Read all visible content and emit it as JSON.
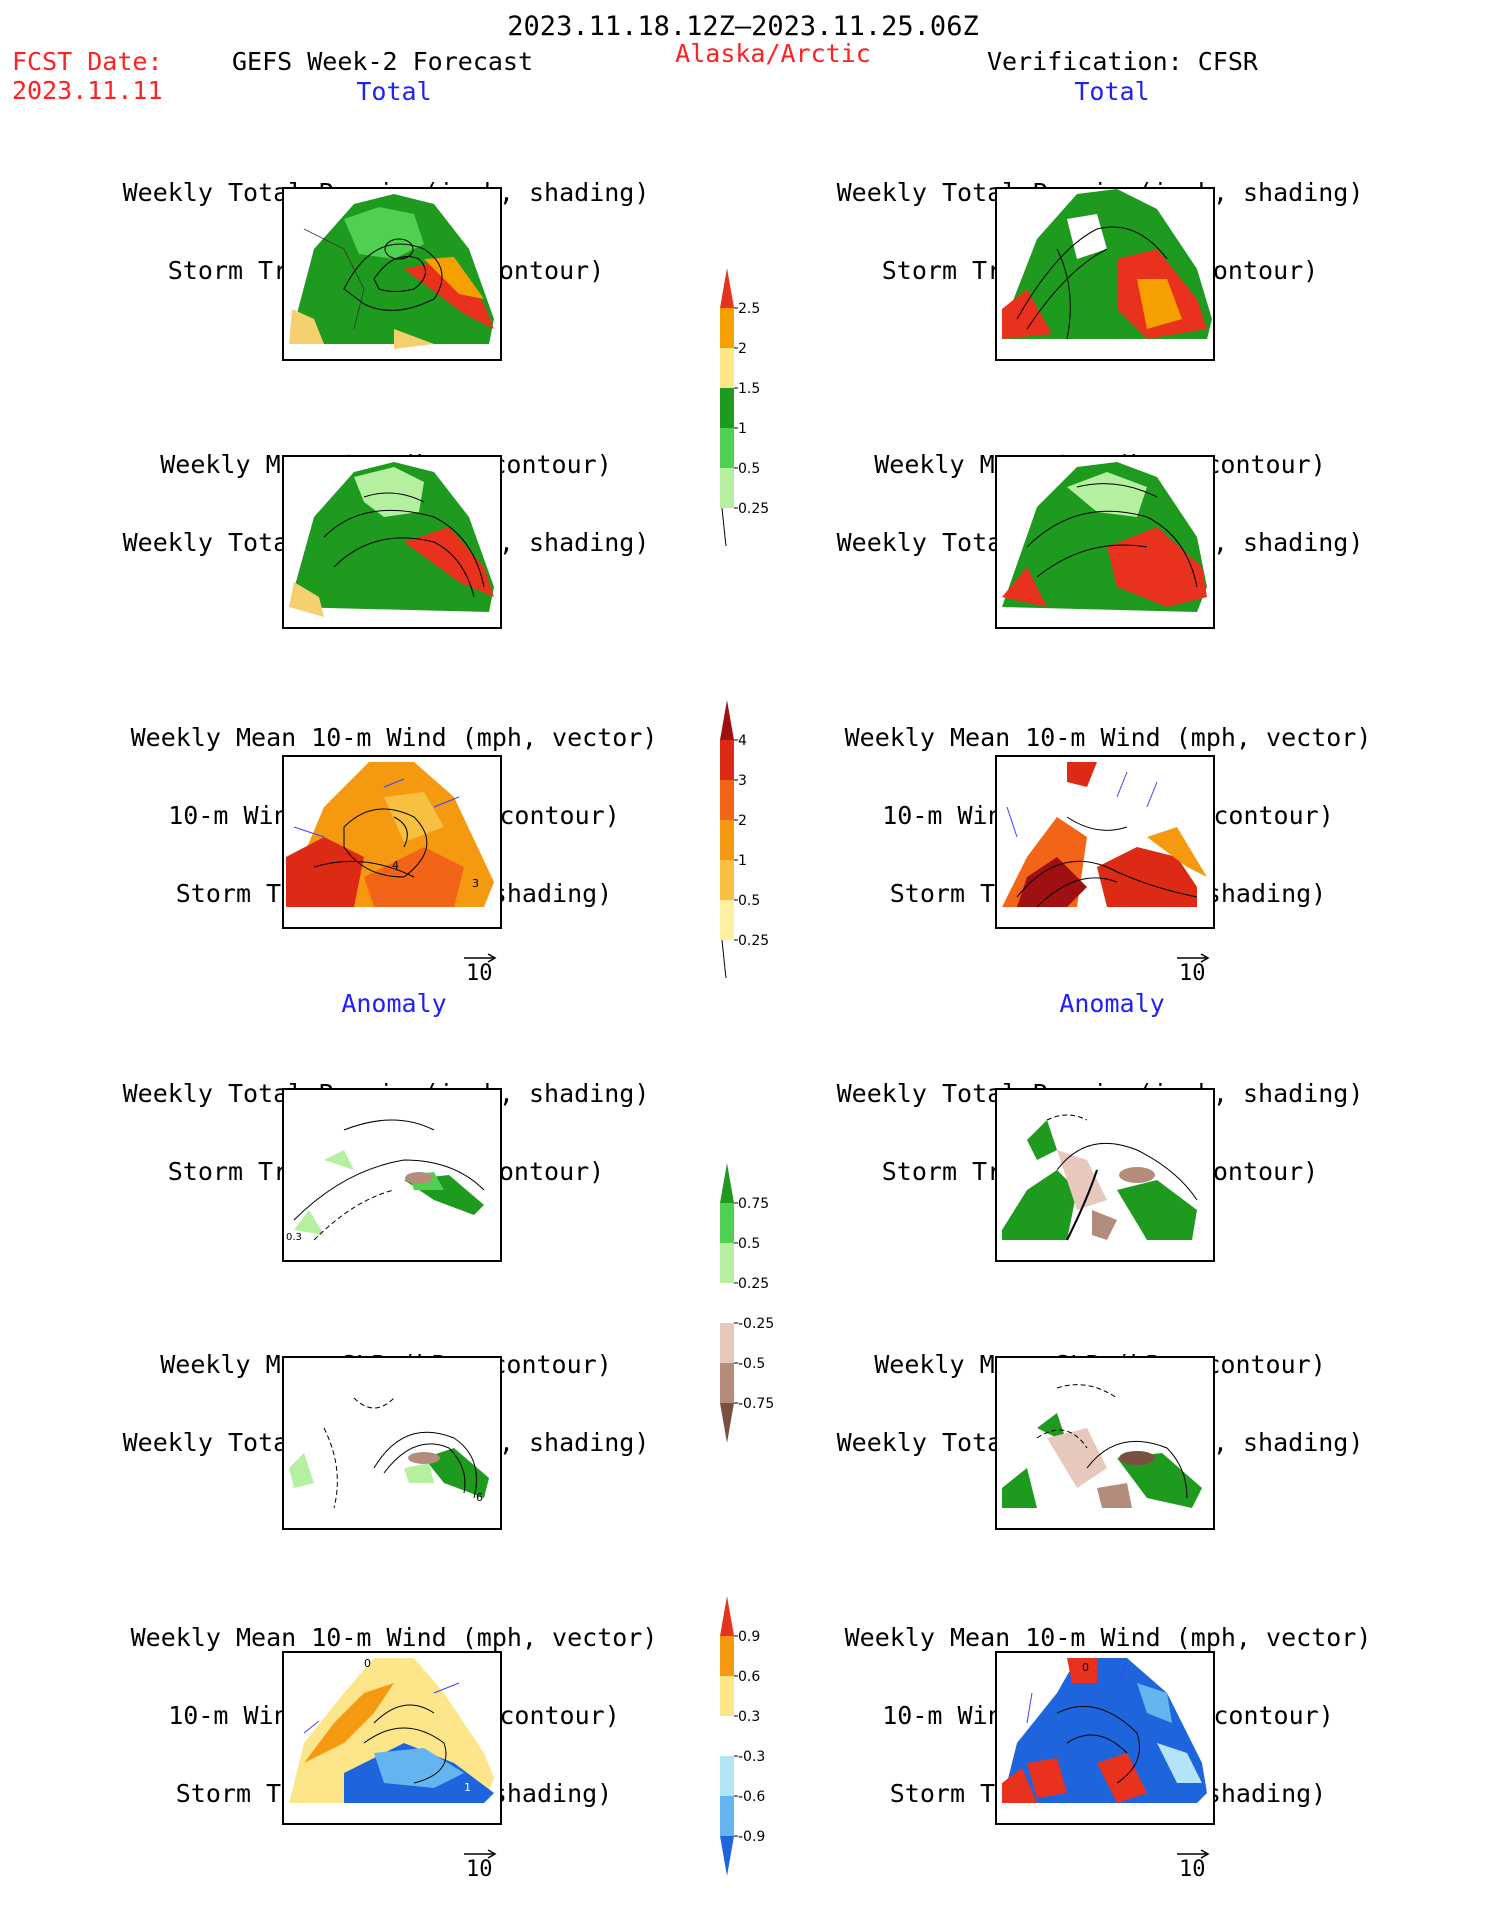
{
  "header": {
    "period": "2023.11.18.12Z–2023.11.25.06Z",
    "fcst_label": "FCST Date:",
    "fcst_date": "2023.11.11",
    "forecast_label": "GEFS Week-2 Forecast",
    "region": "Alaska/Arctic",
    "verification": "Verification: CFSR"
  },
  "sections": {
    "left_total": "Total",
    "right_total": "Total",
    "left_anomaly": "Anomaly",
    "right_anomaly": "Anomaly"
  },
  "panel_titles": {
    "precip_storm": [
      "Weekly Total Precip (inch, shading)",
      "Storm Track Density (contour)"
    ],
    "slp_precip": [
      "Weekly Mean SLP (hPa, contour)",
      "Weekly Total Precip (inch, shading)"
    ],
    "wind_storm": [
      "Weekly Mean 10-m Wind (mph, vector)",
      "10-m Wind Speed (mph, contour)",
      "Storm Track Density (shading)"
    ]
  },
  "vector_reference": "10",
  "colorbars": {
    "precip_total": {
      "labels": [
        "2.5",
        "2",
        "1.5",
        "1",
        "0.5",
        "0.25"
      ],
      "colors": [
        "#e8321e",
        "#f5a000",
        "#fde68a",
        "#1e9a1e",
        "#50d050",
        "#b4f0a0"
      ]
    },
    "storm_total": {
      "labels": [
        "4",
        "3",
        "2",
        "1",
        "0.5",
        "0.25"
      ],
      "colors": [
        "#a01010",
        "#dc2a14",
        "#f26418",
        "#f59a10",
        "#f8c040",
        "#fdf0a0"
      ]
    },
    "precip_anomaly": {
      "labels": [
        "0.75",
        "0.5",
        "0.25",
        "-0.25",
        "-0.5",
        "-0.75"
      ],
      "colors": [
        "#1e9a1e",
        "#50d050",
        "#b4f0a0",
        "#ffffff",
        "#e6c8bc",
        "#b48c7c",
        "#7a5040"
      ]
    },
    "storm_anomaly": {
      "labels": [
        "0.9",
        "0.6",
        "0.3",
        "-0.3",
        "-0.6",
        "-0.9"
      ],
      "colors": [
        "#e8321e",
        "#f59a10",
        "#fde68a",
        "#ffffff",
        "#b4e4f8",
        "#64b4f0",
        "#1e64dc"
      ]
    }
  },
  "map_labels": {
    "anom_precip_left": "0.3",
    "wind_total_left_a": "4",
    "wind_total_left_b": "3",
    "anom_slp_left": "6",
    "anom_wind_left_a": "0",
    "anom_wind_left_b": "1",
    "anom_wind_right": "0"
  }
}
